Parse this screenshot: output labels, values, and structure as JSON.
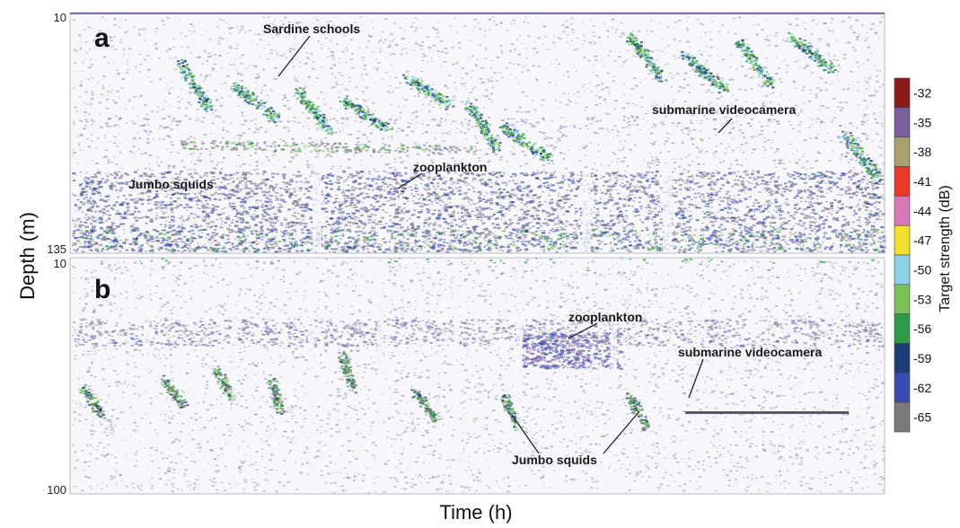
{
  "chart_data": {
    "type": "heatmap",
    "xlabel": "Time (h)",
    "ylabel": "Depth (m)",
    "panels": [
      {
        "id": "a",
        "label": "a",
        "depth_range": [
          10,
          135
        ],
        "depth_ticks": [
          {
            "value": 10,
            "label": "10"
          },
          {
            "value": 135,
            "label": "135"
          }
        ],
        "annotations": [
          {
            "text": "Sardine schools"
          },
          {
            "text": "submarine videocamera"
          },
          {
            "text": "zooplankton"
          },
          {
            "text": "Jumbo squids"
          }
        ]
      },
      {
        "id": "b",
        "label": "b",
        "depth_range": [
          10,
          100
        ],
        "depth_ticks": [
          {
            "value": 10,
            "label": "10"
          },
          {
            "value": 100,
            "label": "100"
          }
        ],
        "annotations": [
          {
            "text": "zooplankton"
          },
          {
            "text": "submarine videocamera"
          },
          {
            "text": "Jumbo squids"
          }
        ]
      }
    ],
    "colorbar": {
      "title": "Target strength (dB)",
      "levels": [
        {
          "value": -32,
          "label": "-32",
          "color": "#8b1a1a"
        },
        {
          "value": -35,
          "label": "-35",
          "color": "#7b5f99"
        },
        {
          "value": -38,
          "label": "-38",
          "color": "#a8a070"
        },
        {
          "value": -41,
          "label": "-41",
          "color": "#e83a2a"
        },
        {
          "value": -44,
          "label": "-44",
          "color": "#d878b8"
        },
        {
          "value": -47,
          "label": "-47",
          "color": "#f2e030"
        },
        {
          "value": -50,
          "label": "-50",
          "color": "#8ed0e8"
        },
        {
          "value": -53,
          "label": "-53",
          "color": "#7cc05a"
        },
        {
          "value": -56,
          "label": "-56",
          "color": "#2f9a48"
        },
        {
          "value": -59,
          "label": "-59",
          "color": "#1c3c78"
        },
        {
          "value": -62,
          "label": "-62",
          "color": "#3a4cb0"
        },
        {
          "value": -65,
          "label": "-65",
          "color": "#7a7a7a"
        }
      ]
    }
  }
}
